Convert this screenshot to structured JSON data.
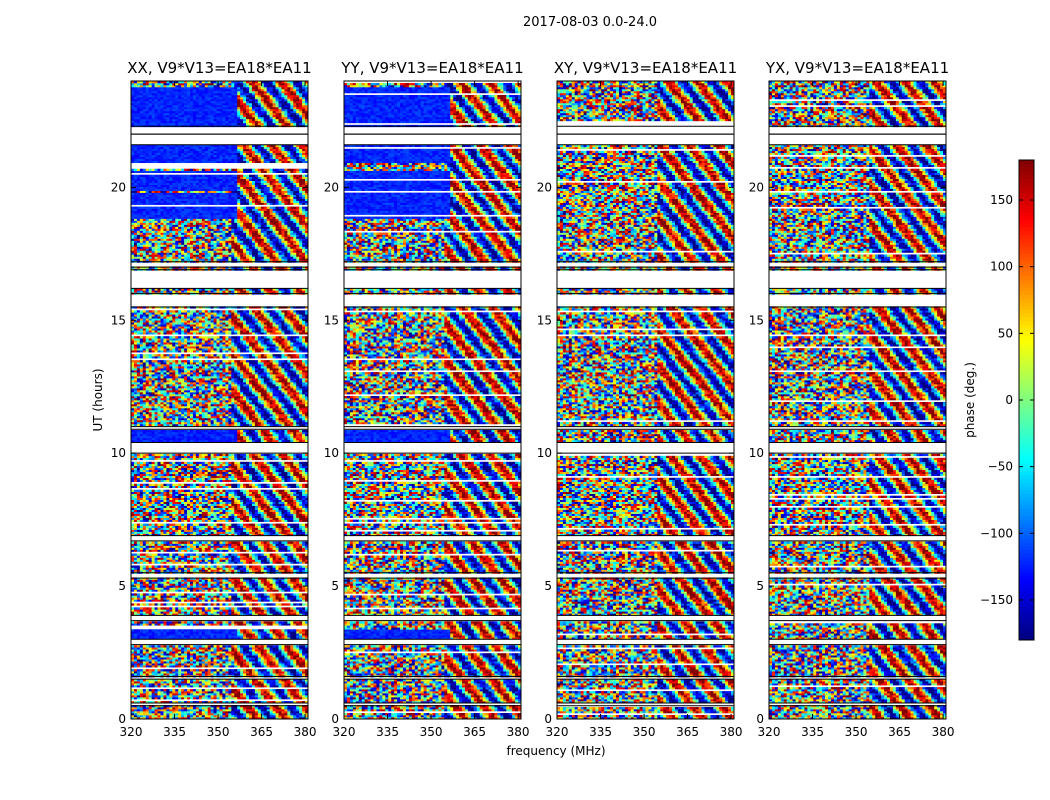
{
  "figure": {
    "suptitle": "2017-08-03 0.0-24.0"
  },
  "chart_data": [
    {
      "type": "heatmap",
      "title": "XX, V9*V13=EA18*EA11",
      "xlabel": "",
      "ylabel": "UT (hours)",
      "xlim": [
        320,
        381
      ],
      "ylim": [
        0,
        24
      ],
      "xticks": [
        "320",
        "335",
        "350",
        "365",
        "380"
      ],
      "yticks": [
        "0",
        "5",
        "10",
        "15",
        "20"
      ],
      "coherent_rows": [
        [
          3.0,
          3.4
        ],
        [
          10.4,
          10.9
        ],
        [
          18.8,
          19.8
        ],
        [
          19.9,
          20.6
        ],
        [
          20.9,
          21.6
        ],
        [
          22.3,
          23.8
        ]
      ]
    },
    {
      "type": "heatmap",
      "title": "YY, V9*V13=EA18*EA11",
      "xlabel": "frequency (MHz)",
      "ylabel": "",
      "xlim": [
        320,
        381
      ],
      "ylim": [
        0,
        24
      ],
      "xticks": [
        "320",
        "335",
        "350",
        "365",
        "380"
      ],
      "yticks": [
        "0",
        "5",
        "10",
        "15",
        "20"
      ],
      "coherent_rows": [
        [
          3.0,
          3.4
        ],
        [
          10.4,
          10.9
        ],
        [
          18.8,
          19.8
        ],
        [
          19.9,
          20.6
        ],
        [
          20.9,
          21.6
        ],
        [
          22.3,
          23.8
        ]
      ]
    },
    {
      "type": "heatmap",
      "title": "XY, V9*V13=EA18*EA11",
      "xlabel": "",
      "ylabel": "",
      "xlim": [
        320,
        381
      ],
      "ylim": [
        0,
        24
      ],
      "xticks": [
        "320",
        "335",
        "350",
        "365",
        "380"
      ],
      "yticks": [
        "0",
        "5",
        "10",
        "15",
        "20"
      ],
      "coherent_rows": []
    },
    {
      "type": "heatmap",
      "title": "YX, V9*V13=EA18*EA11",
      "xlabel": "",
      "ylabel": "",
      "xlim": [
        320,
        381
      ],
      "ylim": [
        0,
        24
      ],
      "xticks": [
        "320",
        "335",
        "350",
        "365",
        "380"
      ],
      "yticks": [
        "0",
        "5",
        "10",
        "15",
        "20"
      ],
      "coherent_rows": []
    }
  ],
  "colorbar": {
    "label": "phase (deg.)",
    "colormap": "jet",
    "range": [
      -180,
      180
    ],
    "ticks": [
      "150",
      "100",
      "50",
      "0",
      "−50",
      "−100",
      "−150"
    ],
    "tick_values": [
      150,
      100,
      50,
      0,
      -50,
      -100,
      -150
    ]
  },
  "flagged_ut_ranges": [
    [
      22.0,
      22.3
    ],
    [
      21.6,
      22.0
    ],
    [
      17.0,
      17.2
    ],
    [
      16.2,
      16.9
    ],
    [
      15.5,
      16.0
    ],
    [
      10.0,
      10.4
    ],
    [
      10.9,
      11.0
    ],
    [
      6.7,
      6.9
    ],
    [
      5.3,
      5.5
    ],
    [
      3.7,
      3.9
    ],
    [
      2.8,
      3.0
    ],
    [
      1.5,
      1.6
    ],
    [
      0.5,
      0.6
    ]
  ]
}
